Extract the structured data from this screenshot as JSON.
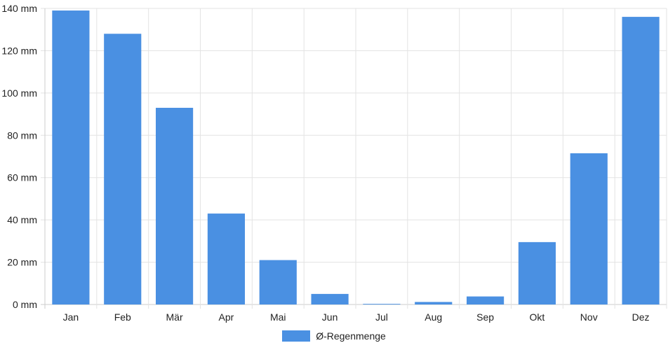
{
  "chart_data": {
    "type": "bar",
    "categories": [
      "Jan",
      "Feb",
      "Mär",
      "Apr",
      "Mai",
      "Jun",
      "Jul",
      "Aug",
      "Sep",
      "Okt",
      "Nov",
      "Dez"
    ],
    "series": [
      {
        "name": "Ø-Regenmenge",
        "values": [
          139,
          128,
          93,
          43,
          21,
          5,
          0.3,
          1.2,
          3.8,
          29.5,
          71.5,
          136
        ]
      }
    ],
    "y_unit": "mm",
    "ylim": [
      0,
      140
    ],
    "y_ticks": [
      0,
      20,
      40,
      60,
      80,
      100,
      120,
      140
    ],
    "grid": true,
    "legend_position": "bottom",
    "colors": {
      "bar": "#4a90e2",
      "grid": "#e3e3e3",
      "axis": "#cccccc"
    }
  }
}
